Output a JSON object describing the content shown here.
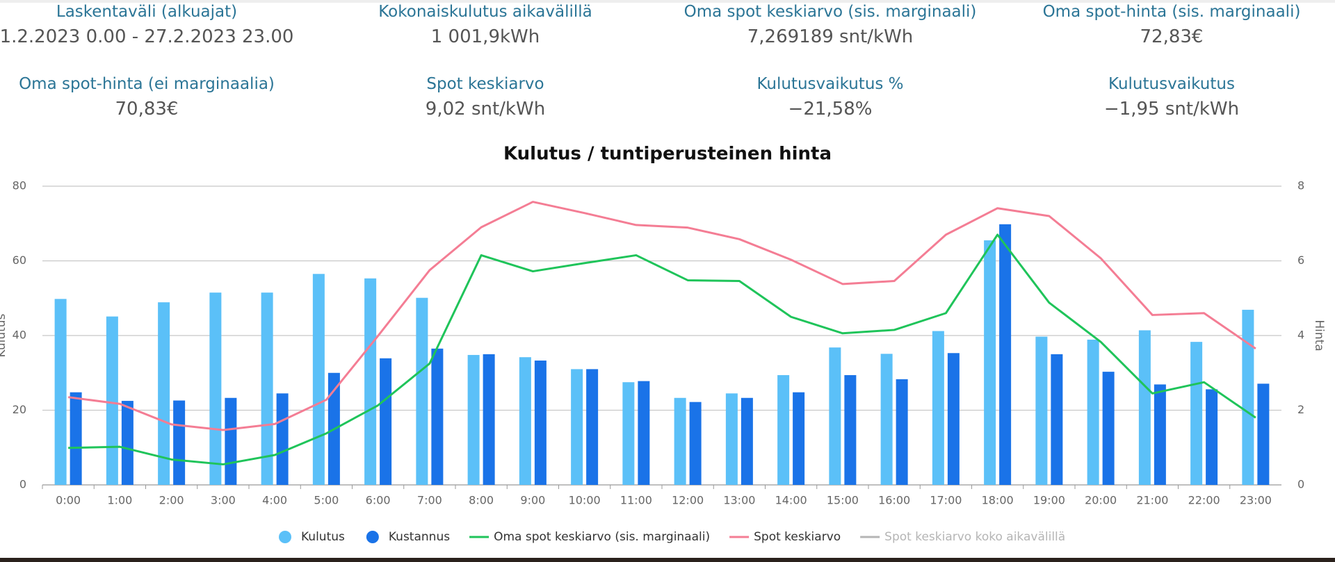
{
  "stats": [
    {
      "label": "Laskentaväli (alkuajat)",
      "value": "1.2.2023 0.00 - 27.2.2023 23.00"
    },
    {
      "label": "Kokonaiskulutus aikavälillä",
      "value": "1 001,9kWh"
    },
    {
      "label": "Oma spot keskiarvo (sis. marginaali)",
      "value": "7,269189 snt/kWh"
    },
    {
      "label": "Oma spot-hinta (sis. marginaali)",
      "value": "72,83€"
    },
    {
      "label": "Oma spot-hinta (ei marginaalia)",
      "value": "70,83€"
    },
    {
      "label": "Spot keskiarvo",
      "value": "9,02 snt/kWh"
    },
    {
      "label": "Kulutusvaikutus %",
      "value": "−21,58%"
    },
    {
      "label": "Kulutusvaikutus",
      "value": "−1,95 snt/kWh"
    }
  ],
  "chart_data": {
    "type": "bar-line",
    "title": "Kulutus / tuntiperusteinen hinta",
    "y_label": "Kulutus",
    "y2_label": "Hinta",
    "categories": [
      "0:00",
      "1:00",
      "2:00",
      "3:00",
      "4:00",
      "5:00",
      "6:00",
      "7:00",
      "8:00",
      "9:00",
      "10:00",
      "11:00",
      "12:00",
      "13:00",
      "14:00",
      "15:00",
      "16:00",
      "17:00",
      "18:00",
      "19:00",
      "20:00",
      "21:00",
      "22:00",
      "23:00"
    ],
    "ylim": [
      0,
      80
    ],
    "yticks": [
      0,
      20,
      40,
      60,
      80
    ],
    "y2lim": [
      0,
      8
    ],
    "y2ticks": [
      0,
      2,
      4,
      6,
      8
    ],
    "grid": true,
    "legend": "bottom",
    "series": [
      {
        "name": "Kulutus",
        "type": "bar",
        "color": "#5bc0f8",
        "values": [
          49.8,
          45.1,
          48.9,
          51.5,
          51.5,
          56.5,
          55.3,
          50.1,
          34.8,
          34.2,
          31.0,
          27.5,
          23.3,
          24.5,
          29.4,
          36.8,
          35.1,
          41.2,
          65.5,
          39.7,
          38.9,
          41.4,
          38.3,
          46.9
        ]
      },
      {
        "name": "Kustannus",
        "type": "bar",
        "color": "#1a73e8",
        "values": [
          24.8,
          22.5,
          22.6,
          23.3,
          24.5,
          30.0,
          33.9,
          36.5,
          35.0,
          33.3,
          31.0,
          27.8,
          22.2,
          23.3,
          24.8,
          29.4,
          28.3,
          35.3,
          69.8,
          35.0,
          30.3,
          26.9,
          25.6,
          27.1
        ]
      },
      {
        "name": "Oma spot keskiarvo (sis. marginaali)",
        "type": "line",
        "axis": "y2",
        "color": "#1fc45a",
        "values": [
          0.99,
          1.02,
          0.68,
          0.55,
          0.8,
          1.38,
          2.13,
          3.25,
          6.15,
          5.72,
          5.94,
          6.15,
          5.48,
          5.46,
          4.5,
          4.06,
          4.15,
          4.6,
          6.7,
          4.88,
          3.83,
          2.45,
          2.75,
          1.8
        ]
      },
      {
        "name": "Spot keskiarvo",
        "type": "line",
        "axis": "y2",
        "color": "#f47d94",
        "values": [
          2.35,
          2.17,
          1.62,
          1.47,
          1.63,
          2.28,
          3.99,
          5.75,
          6.9,
          7.58,
          7.28,
          6.96,
          6.89,
          6.58,
          6.03,
          5.38,
          5.46,
          6.7,
          7.41,
          7.2,
          6.07,
          4.55,
          4.6,
          3.65
        ]
      },
      {
        "name": "Spot keskiarvo koko aikavälillä",
        "type": "line",
        "axis": "y2",
        "color": "#b5b5b5",
        "hidden": true
      }
    ]
  }
}
